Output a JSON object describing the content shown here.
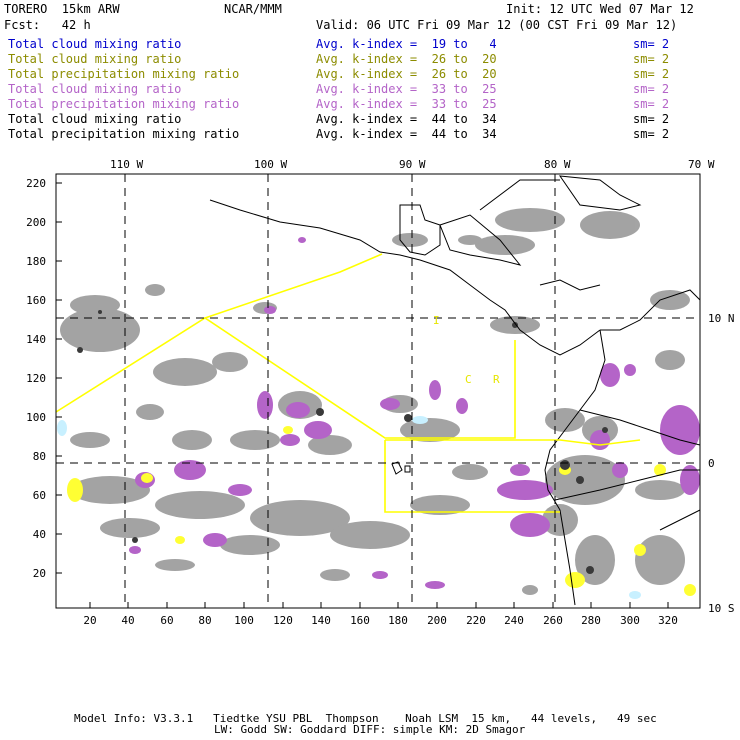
{
  "header": {
    "model": "TORERO  15km ARW",
    "center": "NCAR/MMM",
    "init": "Init: 12 UTC Wed 07 Mar 12",
    "fcst": "Fcst:   42 h",
    "valid": "Valid: 06 UTC Fri 09 Mar 12 (00 CST Fri 09 Mar 12)"
  },
  "legend": [
    {
      "field": "Total cloud mixing ratio",
      "kindex": "Avg. k-index =  19 to   4",
      "sm": "sm= 2",
      "color": "#0000cc"
    },
    {
      "field": "Total cloud mixing ratio",
      "kindex": "Avg. k-index =  26 to  20",
      "sm": "sm= 2",
      "color": "#8c8c00"
    },
    {
      "field": "Total precipitation mixing ratio",
      "kindex": "Avg. k-index =  26 to  20",
      "sm": "sm= 2",
      "color": "#8c8c00"
    },
    {
      "field": "Total cloud mixing ratio",
      "kindex": "Avg. k-index =  33 to  25",
      "sm": "sm= 2",
      "color": "#b464c8"
    },
    {
      "field": "Total precipitation mixing ratio",
      "kindex": "Avg. k-index =  33 to  25",
      "sm": "sm= 2",
      "color": "#b464c8"
    },
    {
      "field": "Total cloud mixing ratio",
      "kindex": "Avg. k-index =  44 to  34",
      "sm": "sm= 2",
      "color": "#000000"
    },
    {
      "field": "Total precipitation mixing ratio",
      "kindex": "Avg. k-index =  44 to  34",
      "sm": "sm= 2",
      "color": "#000000"
    }
  ],
  "map": {
    "top_lon_labels": [
      "110 W",
      "100 W",
      "90 W",
      "80 W",
      "70 W"
    ],
    "right_lat_labels": [
      "10 N",
      "0",
      "10 S"
    ],
    "y_ticks": [
      "220",
      "200",
      "180",
      "160",
      "140",
      "120",
      "100",
      "80",
      "60",
      "40",
      "20"
    ],
    "x_ticks": [
      "20",
      "40",
      "60",
      "80",
      "100",
      "120",
      "140",
      "160",
      "180",
      "200",
      "220",
      "240",
      "260",
      "280",
      "300",
      "320"
    ],
    "region_labels": [
      "I",
      "C",
      "R"
    ],
    "colors": {
      "gray": "#9a9a9a",
      "dark": "#3a3a3a",
      "purple": "#b464c8",
      "yellow": "#ffff33",
      "cyan": "#c8f0ff",
      "boundary": "#ffff00"
    }
  },
  "footer": {
    "line1": "Model Info: V3.3.1   Tiedtke YSU PBL  Thompson    Noah LSM  15 km,   44 levels,   49 sec",
    "line2": "LW: Godd SW: Goddard DIFF: simple KM: 2D Smagor"
  }
}
